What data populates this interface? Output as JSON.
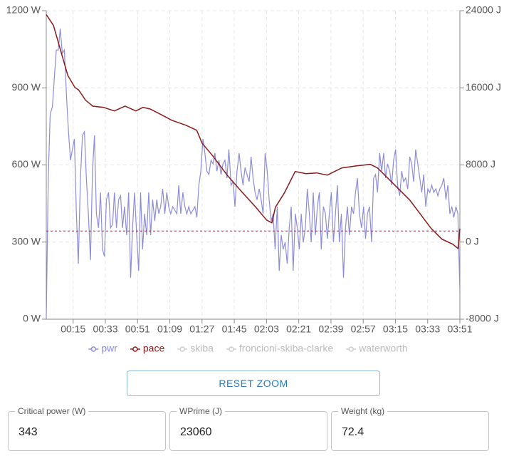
{
  "chart_data": {
    "type": "line",
    "xlim": [
      0,
      231
    ],
    "xticks": [
      {
        "value": 15,
        "label": "00:15"
      },
      {
        "value": 33,
        "label": "00:33"
      },
      {
        "value": 51,
        "label": "00:51"
      },
      {
        "value": 69,
        "label": "01:09"
      },
      {
        "value": 87,
        "label": "01:27"
      },
      {
        "value": 105,
        "label": "01:45"
      },
      {
        "value": 123,
        "label": "02:03"
      },
      {
        "value": 141,
        "label": "02:21"
      },
      {
        "value": 159,
        "label": "02:39"
      },
      {
        "value": 177,
        "label": "02:57"
      },
      {
        "value": 195,
        "label": "03:15"
      },
      {
        "value": 213,
        "label": "03:33"
      },
      {
        "value": 231,
        "label": "03:51"
      }
    ],
    "ylim": [
      0,
      1200
    ],
    "yticks": [
      {
        "value": 0,
        "label": "0 W"
      },
      {
        "value": 300,
        "label": "300 W"
      },
      {
        "value": 600,
        "label": "600 W"
      },
      {
        "value": 900,
        "label": "900 W"
      },
      {
        "value": 1200,
        "label": "1200 W"
      }
    ],
    "y2lim": [
      -8000,
      24000
    ],
    "y2ticks": [
      {
        "value": -8000,
        "label": "-8000 J"
      },
      {
        "value": 0,
        "label": "0 J"
      },
      {
        "value": 8000,
        "label": "8000 J"
      },
      {
        "value": 16000,
        "label": "16000 J"
      },
      {
        "value": 24000,
        "label": "24000 J"
      }
    ],
    "grid": true,
    "series": [
      {
        "name": "pwr",
        "color": "#8c8cd9",
        "x": [
          0,
          1.1,
          2.2,
          3.4,
          4.5,
          5.6,
          6.7,
          7.8,
          9.0,
          10.1,
          11.2,
          12.3,
          13.5,
          14.6,
          15.7,
          16.8,
          17.9,
          19.1,
          20.2,
          21.3,
          22.4,
          23.5,
          24.7,
          25.8,
          26.9,
          28.0,
          29.2,
          30.3,
          31.4,
          32.5,
          33.6,
          34.8,
          35.9,
          37.0,
          38.1,
          39.2,
          40.4,
          41.5,
          42.6,
          43.7,
          44.9,
          46.0,
          47.1,
          48.2,
          49.3,
          50.5,
          51.6,
          52.7,
          53.8,
          54.9,
          56.1,
          57.2,
          58.3,
          59.4,
          60.6,
          61.7,
          62.8,
          63.9,
          65.0,
          66.2,
          67.3,
          68.4,
          69.5,
          70.6,
          71.8,
          72.9,
          74.0,
          75.1,
          76.3,
          77.4,
          78.5,
          79.6,
          80.7,
          81.9,
          83.0,
          84.1,
          85.2,
          86.3,
          87.5,
          88.6,
          89.7,
          90.8,
          92.0,
          93.1,
          94.2,
          95.3,
          96.4,
          97.6,
          98.7,
          99.8,
          100.9,
          102.0,
          103.2,
          104.3,
          105.4,
          106.5,
          107.7,
          108.8,
          109.9,
          111.0,
          112.1,
          113.3,
          114.4,
          115.5,
          116.6,
          117.7,
          118.9,
          120.0,
          121.1,
          122.2,
          123.4,
          124.5,
          125.6,
          126.7,
          127.8,
          129.0,
          130.1,
          131.2,
          132.3,
          133.4,
          134.6,
          135.7,
          136.8,
          137.9,
          139.1,
          140.2,
          141.3,
          142.4,
          143.5,
          144.7,
          145.8,
          146.9,
          148.0,
          149.1,
          150.3,
          151.4,
          152.5,
          153.6,
          154.8,
          155.9,
          157.0,
          158.1,
          159.2,
          160.4,
          161.5,
          162.6,
          163.7,
          164.8,
          166.0,
          167.1,
          168.2,
          169.3,
          170.5,
          171.6,
          172.7,
          173.8,
          174.9,
          176.1,
          177.2,
          178.3,
          179.4,
          180.5,
          181.7,
          182.8,
          183.9,
          185.0,
          186.2,
          187.3,
          188.4,
          189.5,
          190.6,
          191.8,
          192.9,
          194.0,
          195.1,
          196.2,
          197.4,
          198.5,
          199.6,
          200.7,
          201.9,
          203.0,
          204.1,
          205.2,
          206.3,
          207.5,
          208.6,
          209.7,
          210.8,
          211.9,
          213.1,
          214.2,
          215.3,
          216.4,
          217.6,
          218.7,
          219.8,
          220.9,
          222.0,
          223.2,
          224.3,
          225.4,
          226.5,
          227.6,
          228.8,
          229.9,
          231.0
        ],
        "values": [
          0,
          549,
          798,
          826,
          937,
          1047,
          1047,
          1130,
          1034,
          1047,
          881,
          743,
          618,
          660,
          701,
          410,
          216,
          549,
          715,
          729,
          549,
          410,
          230,
          576,
          715,
          410,
          355,
          493,
          272,
          244,
          465,
          493,
          355,
          369,
          493,
          355,
          465,
          480,
          355,
          438,
          327,
          493,
          161,
          355,
          493,
          327,
          188,
          493,
          272,
          410,
          327,
          493,
          327,
          465,
          382,
          465,
          410,
          438,
          507,
          410,
          493,
          438,
          410,
          438,
          424,
          410,
          521,
          410,
          493,
          438,
          410,
          438,
          410,
          424,
          438,
          396,
          521,
          576,
          701,
          646,
          576,
          563,
          618,
          604,
          646,
          576,
          618,
          563,
          604,
          618,
          549,
          660,
          521,
          535,
          438,
          576,
          646,
          576,
          521,
          590,
          563,
          535,
          632,
          549,
          493,
          465,
          507,
          465,
          410,
          646,
          576,
          465,
          382,
          410,
          272,
          438,
          188,
          327,
          272,
          299,
          216,
          355,
          438,
          188,
          410,
          355,
          272,
          410,
          299,
          355,
          507,
          410,
          299,
          493,
          327,
          438,
          493,
          272,
          438,
          410,
          313,
          410,
          493,
          299,
          410,
          521,
          299,
          410,
          161,
          355,
          438,
          327,
          438,
          410,
          493,
          549,
          410,
          355,
          438,
          313,
          410,
          438,
          299,
          549,
          563,
          493,
          646,
          576,
          646,
          549,
          604,
          576,
          521,
          618,
          660,
          521,
          480,
          576,
          535,
          549,
          507,
          632,
          604,
          535,
          660,
          604,
          549,
          493,
          563,
          438,
          507,
          493,
          521,
          493,
          507,
          480,
          507,
          521,
          549,
          465,
          521,
          410,
          438,
          396,
          438,
          410,
          105
        ]
      },
      {
        "name": "pace",
        "color": "#8b1a1a",
        "axis": "y2",
        "x": [
          0,
          4,
          8,
          12,
          16,
          18,
          22,
          26,
          32,
          38,
          44,
          50,
          54,
          58,
          64,
          70,
          78,
          84,
          87,
          93,
          101,
          109,
          117,
          123,
          126,
          128,
          133,
          139,
          145,
          151,
          157,
          165,
          173,
          181,
          185,
          191,
          197,
          203,
          209,
          215,
          221,
          227,
          230,
          231
        ],
        "values": [
          23600,
          22470,
          19880,
          17300,
          16040,
          15800,
          14700,
          14100,
          13970,
          13600,
          14100,
          13600,
          13970,
          13800,
          13230,
          12640,
          12120,
          11600,
          10270,
          8940,
          6950,
          5250,
          3620,
          2290,
          2000,
          3620,
          5100,
          7320,
          7100,
          7170,
          6950,
          7690,
          7900,
          8060,
          7690,
          6580,
          5470,
          4360,
          2880,
          1400,
          300,
          -220,
          -670,
          1400
        ]
      },
      {
        "name": "skiba",
        "color": "#cccccc",
        "hidden": true
      },
      {
        "name": "froncioni-skiba-clarke",
        "color": "#cccccc",
        "hidden": true
      },
      {
        "name": "waterworth",
        "color": "#cccccc",
        "hidden": true
      }
    ],
    "reference_line_color": "#b0203a"
  },
  "button": "RESET ZOOM",
  "form": [
    {
      "label": "Critical power (W)",
      "value": 343
    },
    {
      "label": "WPrime (J)",
      "value": 23060
    },
    {
      "label": "Weight (kg)",
      "value": 72.4
    }
  ]
}
